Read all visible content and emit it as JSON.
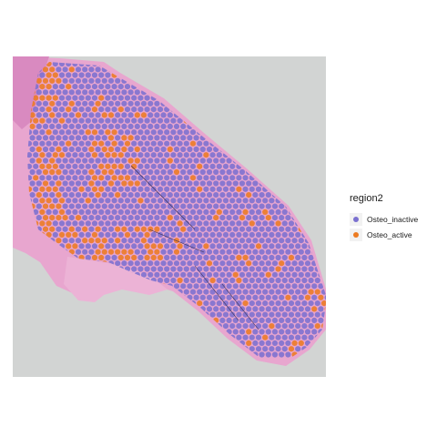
{
  "image": {
    "description_free": true,
    "panel_background": "#d2d4d3",
    "tissue_color": "#e8a6cf",
    "tissue_dark": "#c3579d"
  },
  "legend": {
    "title": "region2",
    "items": [
      {
        "label": "Osteo_inactive",
        "color": "#7b71d0"
      },
      {
        "label": "Osteo_active",
        "color": "#ec7b22"
      }
    ]
  }
}
